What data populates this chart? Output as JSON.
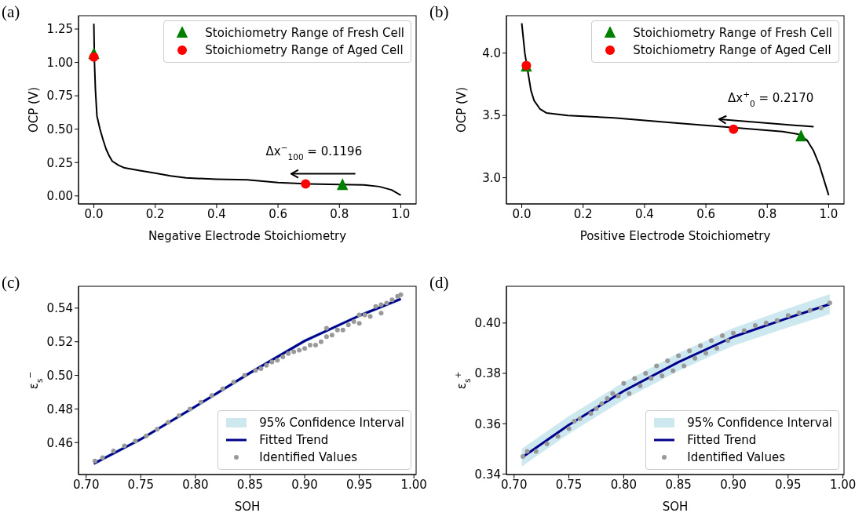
{
  "chart_data": [
    {
      "type": "line",
      "title": "(a)",
      "xlabel": "Negative Electrode Stoichiometry",
      "ylabel": "OCP (V)",
      "xlim": [
        -0.05,
        1.05
      ],
      "ylim": [
        -0.06,
        1.35
      ],
      "xticks": [
        {
          "value": 0,
          "label": "0.0"
        },
        {
          "value": 0.2,
          "label": "0.2"
        },
        {
          "value": 0.4,
          "label": "0.4"
        },
        {
          "value": 0.6,
          "label": "0.6"
        },
        {
          "value": 0.8,
          "label": "0.8"
        },
        {
          "value": 1,
          "label": "1.0"
        }
      ],
      "yticks": [
        {
          "value": 0,
          "label": "0.00"
        },
        {
          "value": 0.25,
          "label": "0.25"
        },
        {
          "value": 0.5,
          "label": "0.50"
        },
        {
          "value": 0.75,
          "label": "0.75"
        },
        {
          "value": 1,
          "label": "1.00"
        },
        {
          "value": 1.25,
          "label": "1.25"
        }
      ],
      "legend": "top right",
      "grid": false,
      "annotations": [
        "Δx$^{−}$$_{100}$ = 0.1196"
      ],
      "series": [
        {
          "color": "#000000",
          "x": [
            0,
            0.002,
            0.005,
            0.01,
            0.02,
            0.03,
            0.04,
            0.05,
            0.06,
            0.08,
            0.1,
            0.15,
            0.2,
            0.25,
            0.3,
            0.4,
            0.5,
            0.6,
            0.7,
            0.8,
            0.88,
            0.93,
            0.97,
            1.0
          ],
          "values": [
            1.29,
            1.0,
            0.8,
            0.6,
            0.5,
            0.42,
            0.35,
            0.3,
            0.26,
            0.23,
            0.21,
            0.19,
            0.17,
            0.15,
            0.135,
            0.125,
            0.12,
            0.1,
            0.09,
            0.085,
            0.083,
            0.07,
            0.045,
            0.005
          ]
        },
        {
          "type": "scatter",
          "name": "Stoichiometry Range of Fresh Cell",
          "marker": "triangle",
          "color": "#008000",
          "x": [
            0,
            0.81
          ],
          "values": [
            1.06,
            0.08
          ]
        },
        {
          "type": "scatter",
          "name": "Stoichiometry Range of Aged Cell",
          "marker": "circle",
          "color": "#ff0000",
          "x": [
            0,
            0.69
          ],
          "values": [
            1.04,
            0.09
          ]
        }
      ]
    },
    {
      "type": "line",
      "title": "(b)",
      "xlabel": "Positive Electrode Stoichiometry",
      "ylabel": "OCP (V)",
      "xlim": [
        -0.05,
        1.05
      ],
      "ylim": [
        2.79,
        4.3
      ],
      "xticks": [
        {
          "value": 0,
          "label": "0.0"
        },
        {
          "value": 0.2,
          "label": "0.2"
        },
        {
          "value": 0.4,
          "label": "0.4"
        },
        {
          "value": 0.6,
          "label": "0.6"
        },
        {
          "value": 0.8,
          "label": "0.8"
        },
        {
          "value": 1,
          "label": "1.0"
        }
      ],
      "yticks": [
        {
          "value": 3,
          "label": "3.0"
        },
        {
          "value": 3.5,
          "label": "3.5"
        },
        {
          "value": 4,
          "label": "4.0"
        }
      ],
      "legend": "top right",
      "grid": false,
      "annotations": [
        "Δx$^{+}$$_{0}$ = 0.2170"
      ],
      "series": [
        {
          "color": "#000000",
          "x": [
            0,
            0.01,
            0.02,
            0.03,
            0.04,
            0.06,
            0.08,
            0.15,
            0.3,
            0.5,
            0.7,
            0.85,
            0.9,
            0.93,
            0.95,
            0.97,
            1.0
          ],
          "values": [
            4.24,
            4.0,
            3.85,
            3.7,
            3.62,
            3.55,
            3.52,
            3.5,
            3.48,
            3.44,
            3.4,
            3.37,
            3.35,
            3.3,
            3.22,
            3.1,
            2.86
          ]
        },
        {
          "type": "scatter",
          "name": "Stoichiometry Range of Fresh Cell",
          "marker": "triangle",
          "color": "#008000",
          "x": [
            0.015,
            0.91
          ],
          "values": [
            3.89,
            3.33
          ]
        },
        {
          "type": "scatter",
          "name": "Stoichiometry Range of Aged Cell",
          "marker": "circle",
          "color": "#ff0000",
          "x": [
            0.015,
            0.69
          ],
          "values": [
            3.9,
            3.39
          ]
        }
      ]
    },
    {
      "type": "line",
      "title": "(c)",
      "xlabel": "SOH",
      "ylabel": "ε$_{s}$$^{−}$",
      "xlim": [
        0.693,
        1.002
      ],
      "ylim": [
        0.441,
        0.553
      ],
      "xticks": [
        {
          "value": 0.7,
          "label": "0.70"
        },
        {
          "value": 0.75,
          "label": "0.75"
        },
        {
          "value": 0.8,
          "label": "0.80"
        },
        {
          "value": 0.85,
          "label": "0.85"
        },
        {
          "value": 0.9,
          "label": "0.90"
        },
        {
          "value": 0.95,
          "label": "0.95"
        },
        {
          "value": 1,
          "label": "1.00"
        }
      ],
      "yticks": [
        {
          "value": 0.46,
          "label": "0.46"
        },
        {
          "value": 0.48,
          "label": "0.48"
        },
        {
          "value": 0.5,
          "label": "0.50"
        },
        {
          "value": 0.52,
          "label": "0.52"
        },
        {
          "value": 0.54,
          "label": "0.54"
        }
      ],
      "legend": "bottom right",
      "grid": false,
      "series": [
        {
          "type": "area",
          "name": "95% Confidence Interval",
          "color": "#add8e6"
        },
        {
          "name": "Fitted Trend",
          "color": "#00008b",
          "x": [
            0.707,
            0.75,
            0.8,
            0.85,
            0.9,
            0.95,
            0.988
          ],
          "values": [
            0.4475,
            0.462,
            0.4815,
            0.5015,
            0.5205,
            0.5355,
            0.5455
          ],
          "lower": [
            0.4462,
            0.4608,
            0.4803,
            0.5003,
            0.5193,
            0.5343,
            0.5442
          ],
          "upper": [
            0.4488,
            0.4632,
            0.4827,
            0.5027,
            0.5217,
            0.5367,
            0.5468
          ]
        },
        {
          "type": "scatter",
          "name": "Identified Values",
          "marker": "circle",
          "color": "#999999",
          "x": [
            0.708,
            0.715,
            0.725,
            0.735,
            0.745,
            0.755,
            0.765,
            0.775,
            0.785,
            0.795,
            0.805,
            0.815,
            0.825,
            0.835,
            0.845,
            0.855,
            0.86,
            0.865,
            0.87,
            0.875,
            0.88,
            0.885,
            0.89,
            0.895,
            0.9,
            0.905,
            0.91,
            0.915,
            0.92,
            0.925,
            0.93,
            0.935,
            0.94,
            0.945,
            0.95,
            0.955,
            0.96,
            0.965,
            0.97,
            0.975,
            0.98,
            0.985,
            0.988,
            0.92,
            0.95,
            0.97
          ],
          "values": [
            0.449,
            0.451,
            0.455,
            0.458,
            0.461,
            0.464,
            0.468,
            0.472,
            0.476,
            0.48,
            0.484,
            0.488,
            0.492,
            0.496,
            0.5,
            0.503,
            0.504,
            0.506,
            0.508,
            0.509,
            0.511,
            0.513,
            0.514,
            0.515,
            0.516,
            0.518,
            0.518,
            0.52,
            0.523,
            0.524,
            0.527,
            0.527,
            0.53,
            0.532,
            0.531,
            0.536,
            0.535,
            0.541,
            0.537,
            0.543,
            0.545,
            0.547,
            0.548,
            0.528,
            0.536,
            0.542
          ]
        }
      ]
    },
    {
      "type": "line",
      "title": "(d)",
      "xlabel": "SOH",
      "ylabel": "ε$_{s}$$^{+}$",
      "xlim": [
        0.693,
        1.001
      ],
      "ylim": [
        0.3398,
        0.4146
      ],
      "xticks": [
        {
          "value": 0.7,
          "label": "0.70"
        },
        {
          "value": 0.75,
          "label": "0.75"
        },
        {
          "value": 0.8,
          "label": "0.80"
        },
        {
          "value": 0.85,
          "label": "0.85"
        },
        {
          "value": 0.9,
          "label": "0.90"
        },
        {
          "value": 0.95,
          "label": "0.95"
        },
        {
          "value": 1,
          "label": "1.00"
        }
      ],
      "yticks": [
        {
          "value": 0.34,
          "label": "0.34"
        },
        {
          "value": 0.36,
          "label": "0.36"
        },
        {
          "value": 0.38,
          "label": "0.38"
        },
        {
          "value": 0.4,
          "label": "0.40"
        }
      ],
      "legend": "bottom right",
      "grid": false,
      "series": [
        {
          "type": "area",
          "name": "95% Confidence Interval",
          "color": "#add8e6"
        },
        {
          "name": "Fitted Trend",
          "color": "#00008b",
          "x": [
            0.707,
            0.75,
            0.8,
            0.85,
            0.9,
            0.95,
            0.988
          ],
          "values": [
            0.3465,
            0.3595,
            0.373,
            0.3845,
            0.3945,
            0.402,
            0.4075
          ],
          "lower": [
            0.343,
            0.356,
            0.3695,
            0.381,
            0.391,
            0.3982,
            0.4035
          ],
          "upper": [
            0.35,
            0.363,
            0.3765,
            0.388,
            0.398,
            0.4058,
            0.4115
          ]
        },
        {
          "type": "scatter",
          "name": "Identified Values",
          "marker": "circle",
          "color": "#999999",
          "x": [
            0.708,
            0.712,
            0.72,
            0.73,
            0.74,
            0.75,
            0.755,
            0.76,
            0.77,
            0.775,
            0.78,
            0.785,
            0.79,
            0.795,
            0.8,
            0.805,
            0.81,
            0.815,
            0.82,
            0.825,
            0.83,
            0.835,
            0.84,
            0.845,
            0.85,
            0.855,
            0.86,
            0.865,
            0.87,
            0.875,
            0.88,
            0.885,
            0.89,
            0.895,
            0.9,
            0.91,
            0.92,
            0.93,
            0.94,
            0.95,
            0.96,
            0.97,
            0.98,
            0.988
          ],
          "values": [
            0.347,
            0.349,
            0.349,
            0.352,
            0.355,
            0.358,
            0.361,
            0.362,
            0.364,
            0.366,
            0.368,
            0.37,
            0.372,
            0.371,
            0.376,
            0.372,
            0.378,
            0.375,
            0.38,
            0.378,
            0.383,
            0.379,
            0.385,
            0.381,
            0.387,
            0.383,
            0.389,
            0.386,
            0.391,
            0.388,
            0.393,
            0.39,
            0.395,
            0.393,
            0.396,
            0.397,
            0.399,
            0.4,
            0.401,
            0.403,
            0.404,
            0.405,
            0.406,
            0.408
          ]
        }
      ]
    }
  ]
}
